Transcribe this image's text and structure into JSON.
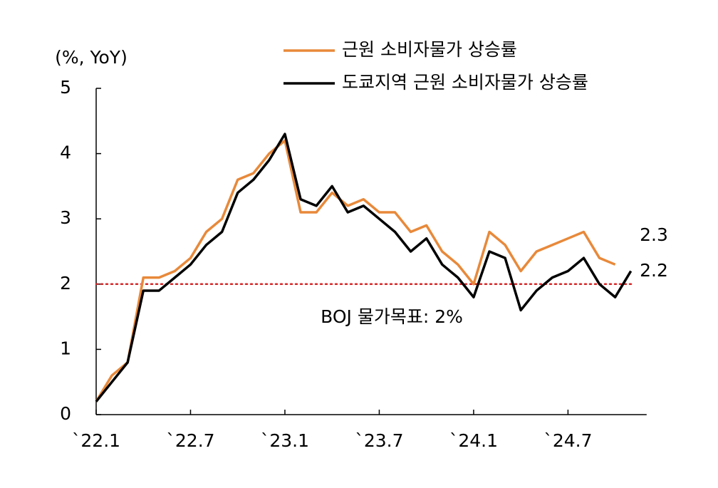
{
  "chart_data": {
    "type": "line",
    "y_label": "(%, YoY)",
    "categories": [
      "`22.1",
      null,
      null,
      null,
      null,
      null,
      "`22.7",
      null,
      null,
      null,
      null,
      null,
      "`23.1",
      null,
      null,
      null,
      null,
      null,
      "`23.7",
      null,
      null,
      null,
      null,
      null,
      "`24.1",
      null,
      null,
      null,
      null,
      null,
      "`24.7",
      null,
      null,
      null,
      null,
      null
    ],
    "series": [
      {
        "name": "근원 소비자물가 상승률",
        "color": "#e8893a",
        "values": [
          0.2,
          0.6,
          0.8,
          2.1,
          2.1,
          2.2,
          2.4,
          2.8,
          3.0,
          3.6,
          3.7,
          4.0,
          4.2,
          3.1,
          3.1,
          3.4,
          3.2,
          3.3,
          3.1,
          3.1,
          2.8,
          2.9,
          2.5,
          2.3,
          2.0,
          2.8,
          2.6,
          2.2,
          2.5,
          2.6,
          2.7,
          2.8,
          2.4,
          2.3,
          null,
          null
        ]
      },
      {
        "name": "도쿄지역 근원 소비자물가 상승률",
        "color": "#000000",
        "values": [
          0.2,
          0.5,
          0.8,
          1.9,
          1.9,
          2.1,
          2.3,
          2.6,
          2.8,
          3.4,
          3.6,
          3.9,
          4.3,
          3.3,
          3.2,
          3.5,
          3.1,
          3.2,
          3.0,
          2.8,
          2.5,
          2.7,
          2.3,
          2.1,
          1.8,
          2.5,
          2.4,
          1.6,
          1.9,
          2.1,
          2.2,
          2.4,
          2.0,
          1.8,
          2.2,
          null
        ]
      }
    ],
    "ylim": [
      0,
      5
    ],
    "yticks": [
      0,
      1,
      2,
      3,
      4,
      5
    ],
    "target": {
      "value": 2,
      "label": "BOJ 물가목표: 2%",
      "color": "#d62728"
    }
  }
}
